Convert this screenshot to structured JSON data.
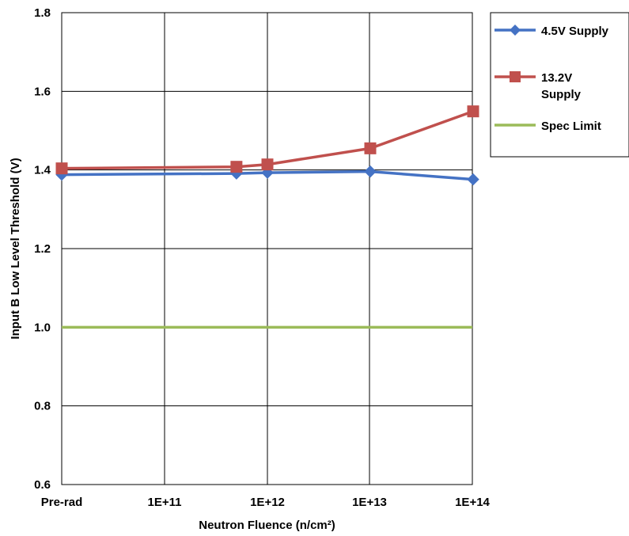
{
  "chart_data": {
    "type": "line",
    "xlabel": "Neutron Fluence (n/cm²)",
    "ylabel": "Input B Low Level Threshold (V)",
    "ylim": [
      0.6,
      1.8
    ],
    "yticks": [
      "0.6",
      "0.8",
      "1.0",
      "1.2",
      "1.4",
      "1.6",
      "1.8"
    ],
    "xticks": [
      "Pre-rad",
      "1E+11",
      "1E+12",
      "1E+13",
      "1E+14"
    ],
    "xscale": "categorical log: Pre-rad, then decades 1E+11 to 1E+14",
    "grid": true,
    "legend_position": "right",
    "series": [
      {
        "name": "4.5V Supply",
        "color": "#4472c4",
        "marker": "diamond",
        "points": [
          {
            "x": "Pre-rad",
            "y": 1.388
          },
          {
            "x": 500000000000.0,
            "y": 1.391
          },
          {
            "x": 1000000000000.0,
            "y": 1.393
          },
          {
            "x": 10000000000000.0,
            "y": 1.396
          },
          {
            "x": 100000000000000.0,
            "y": 1.376
          }
        ]
      },
      {
        "name": "13.2V Supply",
        "color": "#c0504d",
        "marker": "square",
        "points": [
          {
            "x": "Pre-rad",
            "y": 1.404
          },
          {
            "x": 500000000000.0,
            "y": 1.408
          },
          {
            "x": 1000000000000.0,
            "y": 1.414
          },
          {
            "x": 10000000000000.0,
            "y": 1.455
          },
          {
            "x": 100000000000000.0,
            "y": 1.549
          }
        ]
      },
      {
        "name": "Spec Limit",
        "color": "#9bbb59",
        "marker": "none",
        "value": 1.0
      }
    ]
  }
}
